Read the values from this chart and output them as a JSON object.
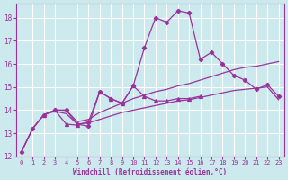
{
  "xlabel": "Windchill (Refroidissement éolien,°C)",
  "background_color": "#cce9ed",
  "grid_color": "#ffffff",
  "line_color": "#993399",
  "xlim": [
    -0.5,
    23.5
  ],
  "ylim": [
    12,
    18.6
  ],
  "yticks": [
    12,
    13,
    14,
    15,
    16,
    17,
    18
  ],
  "xticks": [
    0,
    1,
    2,
    3,
    4,
    5,
    6,
    7,
    8,
    9,
    10,
    11,
    12,
    13,
    14,
    15,
    16,
    17,
    18,
    19,
    20,
    21,
    22,
    23
  ],
  "line1_x": [
    0,
    1,
    2,
    3,
    4,
    5,
    6,
    7,
    8,
    9,
    10,
    11,
    12,
    13,
    14,
    15,
    16,
    17,
    18,
    19,
    20,
    21,
    22,
    23
  ],
  "line1_y": [
    12.2,
    13.2,
    13.8,
    14.0,
    14.0,
    13.4,
    13.3,
    14.8,
    14.5,
    14.3,
    15.05,
    16.7,
    18.0,
    17.8,
    18.3,
    18.2,
    16.2,
    16.5,
    16.0,
    15.5,
    15.3,
    14.9,
    15.1,
    14.6
  ],
  "line2_x": [
    2,
    3,
    4,
    5,
    6,
    7,
    8,
    9,
    10,
    11,
    12,
    13,
    14,
    15,
    16
  ],
  "line2_y": [
    13.8,
    14.0,
    13.4,
    13.35,
    13.5,
    14.8,
    14.5,
    14.3,
    15.05,
    14.6,
    14.4,
    14.4,
    14.5,
    14.5,
    14.6
  ],
  "line3_x": [
    0,
    1,
    2,
    3,
    4,
    5,
    6,
    7,
    8,
    9,
    10,
    11,
    12,
    13,
    14,
    15,
    16,
    17,
    18,
    19,
    20,
    21,
    22,
    23
  ],
  "line3_y": [
    12.2,
    13.2,
    13.8,
    14.0,
    14.0,
    13.5,
    13.6,
    13.9,
    14.1,
    14.3,
    14.5,
    14.65,
    14.8,
    14.9,
    15.05,
    15.15,
    15.3,
    15.45,
    15.6,
    15.75,
    15.85,
    15.9,
    16.0,
    16.1
  ],
  "line4_x": [
    0,
    1,
    2,
    3,
    4,
    5,
    6,
    7,
    8,
    9,
    10,
    11,
    12,
    13,
    14,
    15,
    16,
    17,
    18,
    19,
    20,
    21,
    22,
    23
  ],
  "line4_y": [
    12.2,
    13.2,
    13.8,
    13.95,
    13.85,
    13.4,
    13.45,
    13.6,
    13.75,
    13.9,
    14.0,
    14.1,
    14.2,
    14.3,
    14.4,
    14.45,
    14.55,
    14.65,
    14.75,
    14.85,
    14.9,
    14.95,
    15.0,
    14.45
  ]
}
